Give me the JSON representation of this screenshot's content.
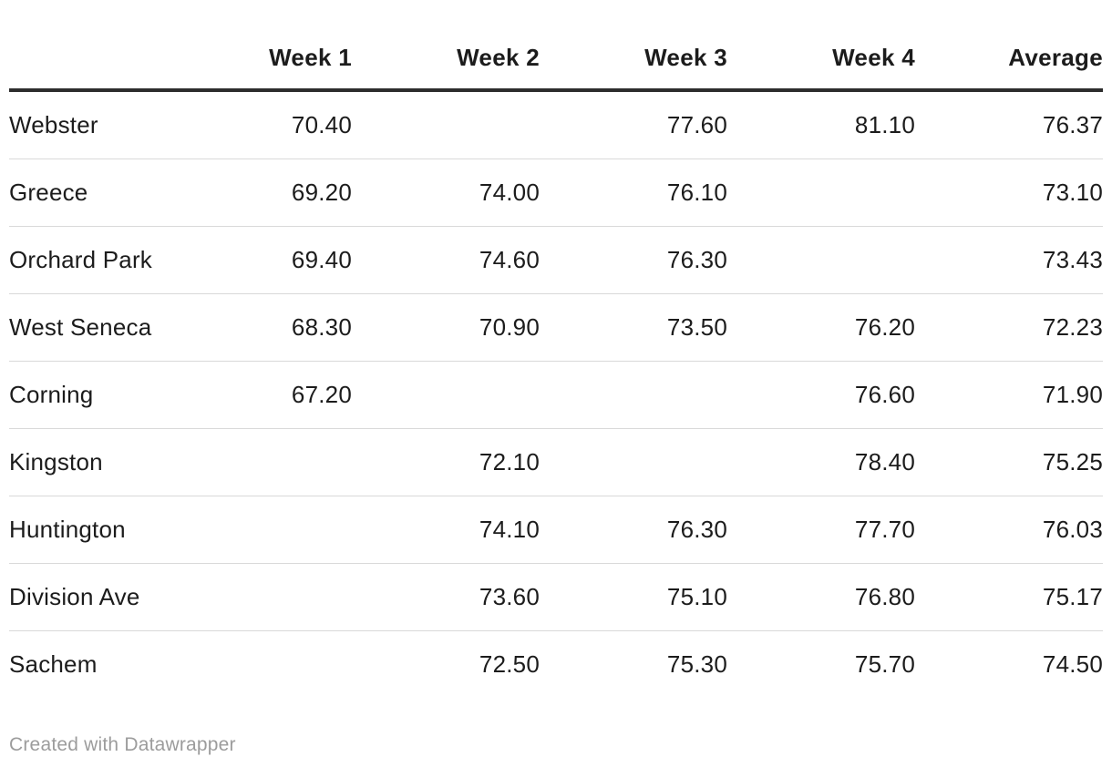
{
  "table": {
    "columns": [
      "",
      "Week 1",
      "Week 2",
      "Week 3",
      "Week 4",
      "Average"
    ],
    "rows": [
      {
        "label": "Webster",
        "values": [
          "70.40",
          "",
          "77.60",
          "81.10",
          "76.37"
        ]
      },
      {
        "label": "Greece",
        "values": [
          "69.20",
          "74.00",
          "76.10",
          "",
          "73.10"
        ]
      },
      {
        "label": "Orchard Park",
        "values": [
          "69.40",
          "74.60",
          "76.30",
          "",
          "73.43"
        ]
      },
      {
        "label": "West Seneca",
        "values": [
          "68.30",
          "70.90",
          "73.50",
          "76.20",
          "72.23"
        ]
      },
      {
        "label": "Corning",
        "values": [
          "67.20",
          "",
          "",
          "76.60",
          "71.90"
        ]
      },
      {
        "label": "Kingston",
        "values": [
          "",
          "72.10",
          "",
          "78.40",
          "75.25"
        ]
      },
      {
        "label": "Huntington",
        "values": [
          "",
          "74.10",
          "76.30",
          "77.70",
          "76.03"
        ]
      },
      {
        "label": "Division Ave",
        "values": [
          "",
          "73.60",
          "75.10",
          "76.80",
          "75.17"
        ]
      },
      {
        "label": "Sachem",
        "values": [
          "",
          "72.50",
          "75.30",
          "75.70",
          "74.50"
        ]
      }
    ]
  },
  "footer": {
    "credit": "Created with Datawrapper"
  },
  "colors": {
    "background": "#ffffff",
    "text": "#1c1c1c",
    "header_rule": "#2d2d2d",
    "row_divider": "#d9d9d9",
    "credit_text": "#9c9c9c"
  },
  "chart_data": {
    "type": "table",
    "title": "",
    "columns": [
      "Week 1",
      "Week 2",
      "Week 3",
      "Week 4",
      "Average"
    ],
    "row_labels": [
      "Webster",
      "Greece",
      "Orchard Park",
      "West Seneca",
      "Corning",
      "Kingston",
      "Huntington",
      "Division Ave",
      "Sachem"
    ],
    "values": [
      [
        70.4,
        null,
        77.6,
        81.1,
        76.37
      ],
      [
        69.2,
        74.0,
        76.1,
        null,
        73.1
      ],
      [
        69.4,
        74.6,
        76.3,
        null,
        73.43
      ],
      [
        68.3,
        70.9,
        73.5,
        76.2,
        72.23
      ],
      [
        67.2,
        null,
        null,
        76.6,
        71.9
      ],
      [
        null,
        72.1,
        null,
        78.4,
        75.25
      ],
      [
        null,
        74.1,
        76.3,
        77.7,
        76.03
      ],
      [
        null,
        73.6,
        75.1,
        76.8,
        75.17
      ],
      [
        null,
        72.5,
        75.3,
        75.7,
        74.5
      ]
    ],
    "layout": {
      "grid": "horizontal-row-dividers",
      "legend": "none",
      "value_format": "2-decimals"
    }
  }
}
